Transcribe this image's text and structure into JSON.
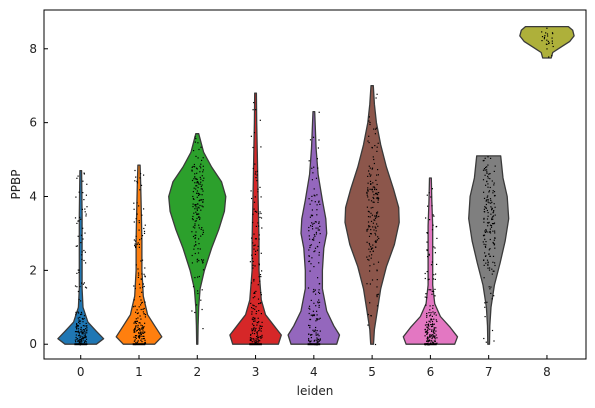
{
  "chart_data": {
    "type": "violin",
    "title": "",
    "xlabel": "leiden",
    "ylabel": "PPBP",
    "ylim": [
      -0.4,
      9.05
    ],
    "yticks": [
      0,
      2,
      4,
      6,
      8
    ],
    "grid": false,
    "legend": "none",
    "categories": [
      "0",
      "1",
      "2",
      "3",
      "4",
      "5",
      "6",
      "7",
      "8"
    ],
    "series": [
      {
        "category": "0",
        "color": "#1f77b4",
        "max": 4.7,
        "range": [
          0,
          4.7
        ],
        "profile": [
          [
            0,
            0.55
          ],
          [
            0.15,
            0.8
          ],
          [
            0.35,
            0.55
          ],
          [
            0.6,
            0.25
          ],
          [
            1.0,
            0.08
          ],
          [
            1.5,
            0.05
          ],
          [
            2.5,
            0.05
          ],
          [
            3.5,
            0.05
          ],
          [
            4.7,
            0.03
          ]
        ]
      },
      {
        "category": "1",
        "color": "#ff7f0e",
        "max": 4.85,
        "range": [
          0,
          4.85
        ],
        "profile": [
          [
            0,
            0.55
          ],
          [
            0.2,
            0.8
          ],
          [
            0.5,
            0.55
          ],
          [
            0.8,
            0.3
          ],
          [
            1.3,
            0.15
          ],
          [
            2.0,
            0.1
          ],
          [
            2.8,
            0.1
          ],
          [
            3.6,
            0.08
          ],
          [
            4.3,
            0.06
          ],
          [
            4.85,
            0.04
          ]
        ]
      },
      {
        "category": "2",
        "color": "#2ca02c",
        "max": 5.7,
        "range": [
          0,
          5.7
        ],
        "profile": [
          [
            0,
            0.02
          ],
          [
            0.5,
            0.03
          ],
          [
            1.0,
            0.05
          ],
          [
            1.5,
            0.1
          ],
          [
            2.0,
            0.25
          ],
          [
            2.6,
            0.5
          ],
          [
            3.1,
            0.75
          ],
          [
            3.6,
            0.95
          ],
          [
            4.0,
            1.0
          ],
          [
            4.4,
            0.85
          ],
          [
            4.8,
            0.5
          ],
          [
            5.2,
            0.22
          ],
          [
            5.7,
            0.05
          ]
        ]
      },
      {
        "category": "3",
        "color": "#d62728",
        "max": 6.8,
        "range": [
          0,
          6.8
        ],
        "profile": [
          [
            0,
            0.8
          ],
          [
            0.25,
            0.9
          ],
          [
            0.5,
            0.65
          ],
          [
            0.8,
            0.35
          ],
          [
            1.2,
            0.2
          ],
          [
            2.0,
            0.12
          ],
          [
            2.8,
            0.12
          ],
          [
            3.6,
            0.1
          ],
          [
            4.4,
            0.08
          ],
          [
            5.2,
            0.06
          ],
          [
            6.0,
            0.04
          ],
          [
            6.8,
            0.03
          ]
        ]
      },
      {
        "category": "4",
        "color": "#9467bd",
        "max": 6.3,
        "range": [
          0,
          6.3
        ],
        "profile": [
          [
            0,
            0.8
          ],
          [
            0.25,
            0.9
          ],
          [
            0.5,
            0.7
          ],
          [
            0.9,
            0.45
          ],
          [
            1.5,
            0.3
          ],
          [
            2.0,
            0.3
          ],
          [
            2.6,
            0.35
          ],
          [
            3.0,
            0.45
          ],
          [
            3.4,
            0.42
          ],
          [
            3.9,
            0.3
          ],
          [
            4.6,
            0.15
          ],
          [
            5.3,
            0.08
          ],
          [
            6.3,
            0.03
          ]
        ]
      },
      {
        "category": "5",
        "color": "#8c564b",
        "max": 7.0,
        "range": [
          0,
          7.0
        ],
        "profile": [
          [
            0,
            0.05
          ],
          [
            0.4,
            0.08
          ],
          [
            0.9,
            0.18
          ],
          [
            1.5,
            0.3
          ],
          [
            2.1,
            0.5
          ],
          [
            2.7,
            0.78
          ],
          [
            3.3,
            0.95
          ],
          [
            3.7,
            0.93
          ],
          [
            4.2,
            0.75
          ],
          [
            4.8,
            0.5
          ],
          [
            5.4,
            0.3
          ],
          [
            6.0,
            0.15
          ],
          [
            6.5,
            0.08
          ],
          [
            7.0,
            0.04
          ]
        ]
      },
      {
        "category": "6",
        "color": "#e377c2",
        "max": 4.5,
        "range": [
          0,
          4.5
        ],
        "profile": [
          [
            0,
            0.85
          ],
          [
            0.2,
            0.95
          ],
          [
            0.45,
            0.7
          ],
          [
            0.75,
            0.35
          ],
          [
            1.1,
            0.15
          ],
          [
            1.6,
            0.08
          ],
          [
            2.4,
            0.08
          ],
          [
            3.2,
            0.08
          ],
          [
            3.9,
            0.05
          ],
          [
            4.5,
            0.03
          ]
        ]
      },
      {
        "category": "7",
        "color": "#7f7f7f",
        "max": 5.1,
        "range": [
          0,
          5.1
        ],
        "profile": [
          [
            0,
            0.03
          ],
          [
            0.5,
            0.04
          ],
          [
            1.0,
            0.08
          ],
          [
            1.6,
            0.2
          ],
          [
            2.2,
            0.4
          ],
          [
            2.8,
            0.58
          ],
          [
            3.4,
            0.7
          ],
          [
            4.0,
            0.65
          ],
          [
            4.5,
            0.5
          ],
          [
            5.1,
            0.42
          ]
        ]
      },
      {
        "category": "8",
        "color": "#aeb03a",
        "max": 8.6,
        "range": [
          7.75,
          8.6
        ],
        "profile": [
          [
            7.75,
            0.15
          ],
          [
            7.9,
            0.2
          ],
          [
            8.05,
            0.5
          ],
          [
            8.2,
            0.8
          ],
          [
            8.35,
            0.95
          ],
          [
            8.5,
            0.9
          ],
          [
            8.6,
            0.75
          ]
        ]
      }
    ]
  }
}
